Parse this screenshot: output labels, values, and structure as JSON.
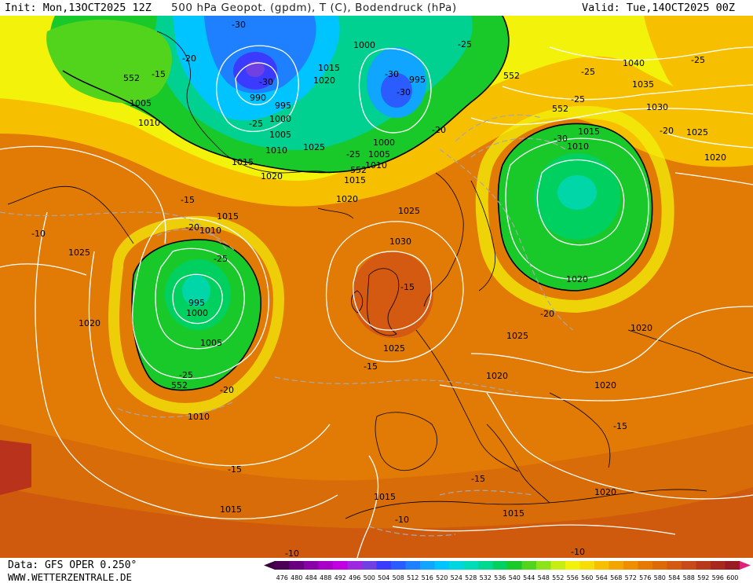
{
  "header": {
    "init": "Init: Mon,13OCT2025 12Z",
    "title": "500 hPa Geopot. (gpdm), T (C), Bodendruck (hPa)",
    "valid": "Valid: Tue,14OCT2025 00Z"
  },
  "footer": {
    "data_source": "Data: GFS OPER 0.250°",
    "website": "WWW.WETTERZENTRALE.DE"
  },
  "legend": {
    "ticks": [
      "476",
      "480",
      "484",
      "488",
      "492",
      "496",
      "500",
      "504",
      "508",
      "512",
      "516",
      "520",
      "524",
      "528",
      "532",
      "536",
      "540",
      "544",
      "548",
      "552",
      "556",
      "560",
      "564",
      "568",
      "572",
      "576",
      "580",
      "584",
      "588",
      "592",
      "596",
      "600"
    ],
    "colors": [
      "#4b0055",
      "#6a0080",
      "#8a00a8",
      "#a900c8",
      "#c000e0",
      "#9c28e0",
      "#7040e0",
      "#3b3bff",
      "#2a5cff",
      "#1f80ff",
      "#10a6ff",
      "#00c4ff",
      "#00d6e0",
      "#00dcb8",
      "#00d890",
      "#00d060",
      "#19c92a",
      "#52d41c",
      "#8ee21a",
      "#c6ee14",
      "#f2f20a",
      "#f8dc08",
      "#f6c000",
      "#f2a400",
      "#ee8e00",
      "#e67a00",
      "#dc6a08",
      "#d35a10",
      "#c84a18",
      "#b8381c",
      "#a8281e",
      "#981a22"
    ]
  },
  "map": {
    "contour_label_values": {
      "geopotential_552": "552",
      "pressure": [
        "1040",
        "1035",
        "1030",
        "1025",
        "1020",
        "1015",
        "1010",
        "1005",
        "1000",
        "995",
        "990"
      ],
      "temperature": [
        "-30",
        "-25",
        "-20",
        "-15",
        "-10"
      ]
    }
  }
}
